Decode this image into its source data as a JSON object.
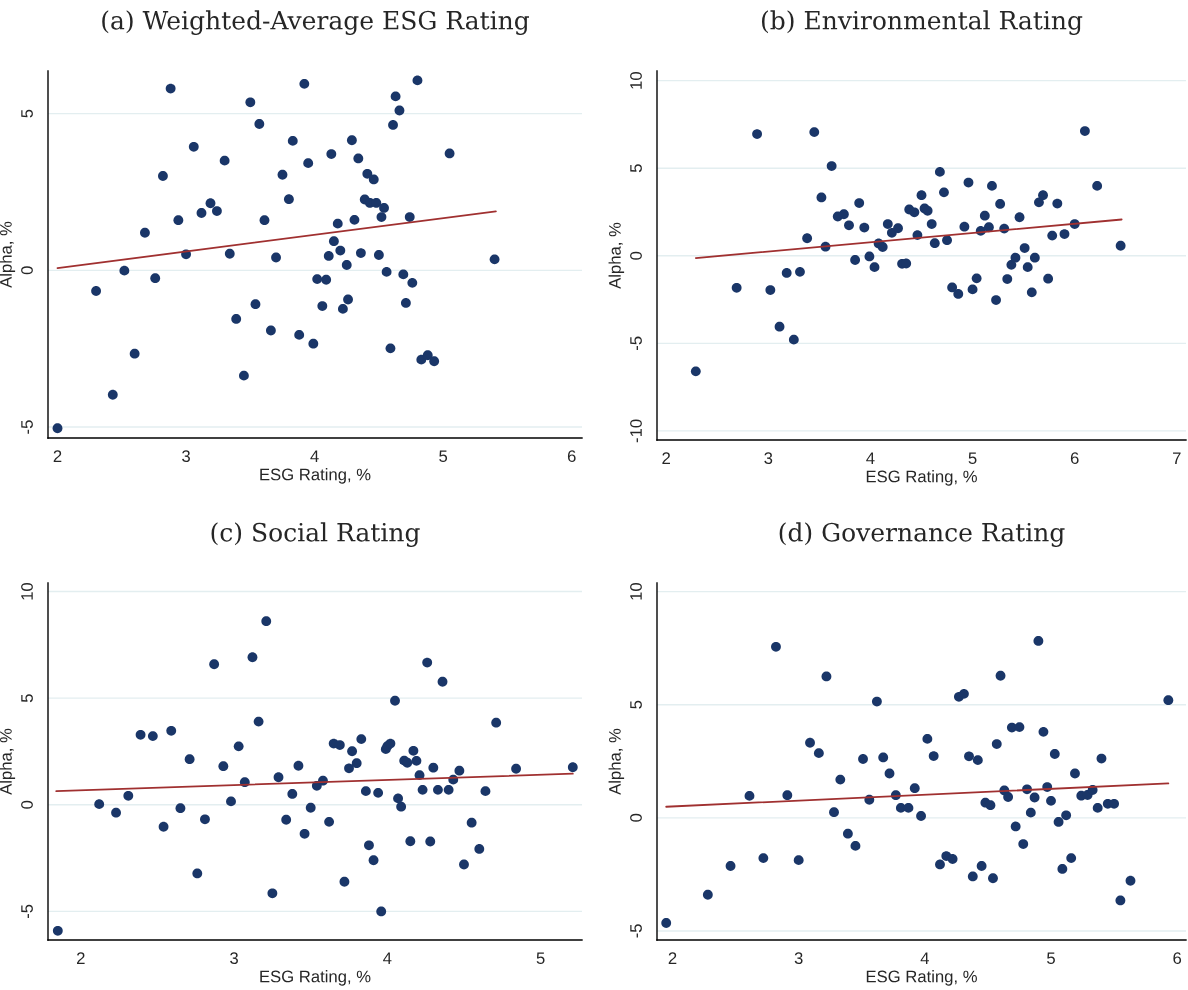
{
  "chart_data": [
    {
      "type": "scatter",
      "title": "(a) Weighted-Average ESG Rating",
      "xlabel": "ESG Rating, %",
      "ylabel": "Alpha, %",
      "xlim": [
        1.926,
        6.08
      ],
      "ylim": [
        -5.35,
        6.36
      ],
      "xticks": [
        2,
        3,
        4,
        5,
        6
      ],
      "yticks": [
        -5,
        0,
        5
      ],
      "grid": "y",
      "marker": "circle",
      "series": [
        {
          "color": "#1a3668",
          "x": [
            2.0,
            2.3,
            2.43,
            2.52,
            2.6,
            2.68,
            2.76,
            2.82,
            2.88,
            2.94,
            3.0,
            3.06,
            3.12,
            3.19,
            3.24,
            3.3,
            3.34,
            3.39,
            3.45,
            3.5,
            3.54,
            3.57,
            3.61,
            3.66,
            3.7,
            3.75,
            3.8,
            3.83,
            3.88,
            3.92,
            3.95,
            3.99,
            4.02,
            4.06,
            4.09,
            4.11,
            4.13,
            4.15,
            4.18,
            4.2,
            4.22,
            4.25,
            4.26,
            4.29,
            4.31,
            4.34,
            4.36,
            4.39,
            4.41,
            4.43,
            4.46,
            4.48,
            4.5,
            4.52,
            4.54,
            4.56,
            4.59,
            4.61,
            4.63,
            4.66,
            4.69,
            4.71,
            4.74,
            4.76,
            4.8,
            4.83,
            4.88,
            4.93,
            5.05,
            5.4
          ],
          "values": [
            -5.04,
            -0.66,
            -3.97,
            -0.01,
            -2.66,
            1.2,
            -0.25,
            3.01,
            5.8,
            1.6,
            0.51,
            3.94,
            1.83,
            2.14,
            1.89,
            3.5,
            0.53,
            -1.55,
            -3.36,
            5.36,
            -1.08,
            4.67,
            1.6,
            -1.92,
            0.41,
            3.05,
            2.27,
            4.13,
            -2.06,
            5.95,
            3.42,
            -2.34,
            -0.28,
            -1.14,
            -0.3,
            0.46,
            3.71,
            0.93,
            1.49,
            0.63,
            -1.23,
            0.17,
            -0.93,
            4.15,
            1.61,
            3.57,
            0.55,
            2.26,
            3.08,
            2.15,
            2.9,
            2.15,
            0.49,
            1.7,
            1.99,
            -0.05,
            -2.49,
            4.64,
            5.55,
            5.1,
            -0.13,
            -1.04,
            1.7,
            -0.4,
            6.06,
            -2.85,
            -2.71,
            -2.9,
            3.73,
            0.35
          ]
        },
        {
          "type": "line",
          "marker": "none",
          "color": "#a03030",
          "x": [
            2.0,
            5.41
          ],
          "values": [
            0.07,
            1.88
          ]
        }
      ]
    },
    {
      "type": "scatter",
      "title": "(b) Environmental Rating",
      "xlabel": "ESG Rating, %",
      "ylabel": "Alpha, %",
      "xlim": [
        1.91,
        7.09
      ],
      "ylim": [
        -10.52,
        10.55
      ],
      "xticks": [
        2,
        3,
        4,
        5,
        6,
        7
      ],
      "yticks": [
        -10,
        -5,
        0,
        5,
        10
      ],
      "grid": "y",
      "marker": "circle",
      "series": [
        {
          "color": "#1a3668",
          "x": [
            2.29,
            2.69,
            2.89,
            3.02,
            3.11,
            3.18,
            3.25,
            3.31,
            3.38,
            3.45,
            3.52,
            3.56,
            3.62,
            3.68,
            3.74,
            3.79,
            3.85,
            3.89,
            3.94,
            3.99,
            4.04,
            4.08,
            4.12,
            4.17,
            4.21,
            4.27,
            4.31,
            4.35,
            4.38,
            4.43,
            4.46,
            4.5,
            4.53,
            4.56,
            4.6,
            4.63,
            4.68,
            4.72,
            4.75,
            4.8,
            4.86,
            4.92,
            4.96,
            5.0,
            5.04,
            5.08,
            5.12,
            5.16,
            5.19,
            5.23,
            5.27,
            5.31,
            5.34,
            5.38,
            5.42,
            5.46,
            5.51,
            5.54,
            5.58,
            5.61,
            5.65,
            5.69,
            5.74,
            5.78,
            5.83,
            5.9,
            6.0,
            6.1,
            6.22,
            6.45
          ],
          "values": [
            -6.6,
            -1.83,
            6.95,
            -1.96,
            -4.05,
            -0.98,
            -4.79,
            -0.92,
            1.0,
            7.06,
            3.33,
            0.52,
            5.12,
            2.24,
            2.37,
            1.74,
            -0.24,
            3.01,
            1.61,
            -0.04,
            -0.65,
            0.7,
            0.5,
            1.81,
            1.31,
            1.57,
            -0.46,
            -0.44,
            2.64,
            2.48,
            1.18,
            3.46,
            2.7,
            2.57,
            1.81,
            0.72,
            4.79,
            3.62,
            0.89,
            -1.81,
            -2.18,
            1.66,
            4.18,
            -1.92,
            -1.29,
            1.42,
            2.29,
            1.63,
            3.99,
            -2.53,
            2.96,
            1.55,
            -1.33,
            -0.52,
            -0.11,
            2.2,
            0.44,
            -0.65,
            -2.09,
            -0.11,
            3.05,
            3.46,
            -1.31,
            1.15,
            2.98,
            1.24,
            1.81,
            7.12,
            3.99,
            0.57
          ]
        },
        {
          "type": "line",
          "marker": "none",
          "color": "#a03030",
          "x": [
            2.29,
            6.46
          ],
          "values": [
            -0.13,
            2.07
          ]
        }
      ]
    },
    {
      "type": "scatter",
      "title": "(c) Social Rating",
      "xlabel": "ESG Rating, %",
      "ylabel": "Alpha, %",
      "xlim": [
        1.786,
        5.27
      ],
      "ylim": [
        -6.34,
        10.4
      ],
      "xticks": [
        2,
        3,
        4,
        5
      ],
      "yticks": [
        -5,
        0,
        5,
        10
      ],
      "grid": "y",
      "marker": "circle",
      "series": [
        {
          "color": "#1a3668",
          "x": [
            1.85,
            2.12,
            2.23,
            2.31,
            2.39,
            2.47,
            2.54,
            2.59,
            2.65,
            2.71,
            2.76,
            2.81,
            2.87,
            2.93,
            2.98,
            3.03,
            3.07,
            3.12,
            3.16,
            3.21,
            3.25,
            3.29,
            3.34,
            3.38,
            3.42,
            3.46,
            3.5,
            3.54,
            3.58,
            3.62,
            3.65,
            3.69,
            3.72,
            3.75,
            3.77,
            3.8,
            3.83,
            3.86,
            3.88,
            3.91,
            3.94,
            3.96,
            3.99,
            4.0,
            4.02,
            4.05,
            4.07,
            4.09,
            4.11,
            4.13,
            4.15,
            4.17,
            4.19,
            4.21,
            4.23,
            4.26,
            4.28,
            4.3,
            4.33,
            4.36,
            4.4,
            4.43,
            4.47,
            4.5,
            4.55,
            4.6,
            4.64,
            4.71,
            4.84,
            5.21
          ],
          "values": [
            -5.91,
            0.03,
            -0.37,
            0.42,
            3.28,
            3.22,
            -1.03,
            3.47,
            -0.16,
            2.14,
            -3.22,
            -0.68,
            6.59,
            1.81,
            0.16,
            2.74,
            1.06,
            6.92,
            3.9,
            8.61,
            -4.15,
            1.29,
            -0.7,
            0.51,
            1.83,
            -1.36,
            -0.14,
            0.89,
            1.13,
            -0.8,
            2.87,
            2.8,
            -3.61,
            1.71,
            2.51,
            1.95,
            3.08,
            0.64,
            -1.9,
            -2.6,
            0.56,
            -5.0,
            2.61,
            2.75,
            2.87,
            4.88,
            0.3,
            -0.09,
            2.07,
            1.97,
            -1.71,
            2.53,
            2.06,
            1.39,
            0.7,
            6.67,
            -1.72,
            1.74,
            0.7,
            5.77,
            0.7,
            1.18,
            1.6,
            -2.8,
            -0.84,
            -2.07,
            0.64,
            3.85,
            1.69,
            1.76
          ]
        },
        {
          "type": "line",
          "marker": "none",
          "color": "#a03030",
          "x": [
            1.84,
            5.21
          ],
          "values": [
            0.64,
            1.46
          ]
        }
      ]
    },
    {
      "type": "scatter",
      "title": "(d) Governance Rating",
      "xlabel": "ESG Rating, %",
      "ylabel": "Alpha, %",
      "xlim": [
        1.877,
        6.07
      ],
      "ylim": [
        -5.4,
        10.38
      ],
      "xticks": [
        2,
        3,
        4,
        5,
        6
      ],
      "yticks": [
        -5,
        0,
        5,
        10
      ],
      "grid": "y",
      "marker": "circle",
      "series": [
        {
          "color": "#1a3668",
          "x": [
            1.95,
            2.28,
            2.46,
            2.61,
            2.72,
            2.82,
            2.91,
            3.0,
            3.09,
            3.16,
            3.22,
            3.28,
            3.33,
            3.39,
            3.45,
            3.51,
            3.56,
            3.62,
            3.67,
            3.72,
            3.77,
            3.81,
            3.87,
            3.92,
            3.97,
            4.02,
            4.07,
            4.12,
            4.17,
            4.22,
            4.27,
            4.31,
            4.35,
            4.38,
            4.42,
            4.45,
            4.48,
            4.52,
            4.54,
            4.57,
            4.6,
            4.63,
            4.66,
            4.69,
            4.72,
            4.75,
            4.78,
            4.81,
            4.84,
            4.87,
            4.9,
            4.94,
            4.97,
            5.0,
            5.03,
            5.06,
            5.09,
            5.12,
            5.16,
            5.19,
            5.24,
            5.29,
            5.33,
            5.37,
            5.4,
            5.45,
            5.5,
            5.55,
            5.63,
            5.93
          ],
          "values": [
            -4.65,
            -3.4,
            -2.13,
            0.97,
            -1.78,
            7.56,
            1.0,
            -1.87,
            3.32,
            2.86,
            6.25,
            0.25,
            1.69,
            -0.7,
            -1.24,
            2.6,
            0.8,
            5.14,
            2.67,
            1.96,
            1.0,
            0.44,
            0.44,
            1.31,
            0.08,
            3.49,
            2.73,
            -2.06,
            -1.69,
            -1.82,
            5.35,
            5.48,
            2.72,
            -2.59,
            2.55,
            -2.13,
            0.67,
            0.56,
            -2.67,
            3.26,
            6.28,
            1.21,
            0.92,
            3.99,
            -0.38,
            4.01,
            -1.16,
            1.26,
            0.23,
            0.9,
            7.82,
            3.8,
            1.36,
            0.75,
            2.82,
            -0.18,
            -2.26,
            0.11,
            -1.78,
            1.96,
            0.98,
            1.01,
            1.23,
            0.44,
            2.62,
            0.62,
            0.62,
            -3.65,
            -2.78,
            5.2
          ]
        },
        {
          "type": "line",
          "marker": "none",
          "color": "#a03030",
          "x": [
            1.95,
            5.93
          ],
          "values": [
            0.49,
            1.52
          ]
        }
      ]
    }
  ]
}
